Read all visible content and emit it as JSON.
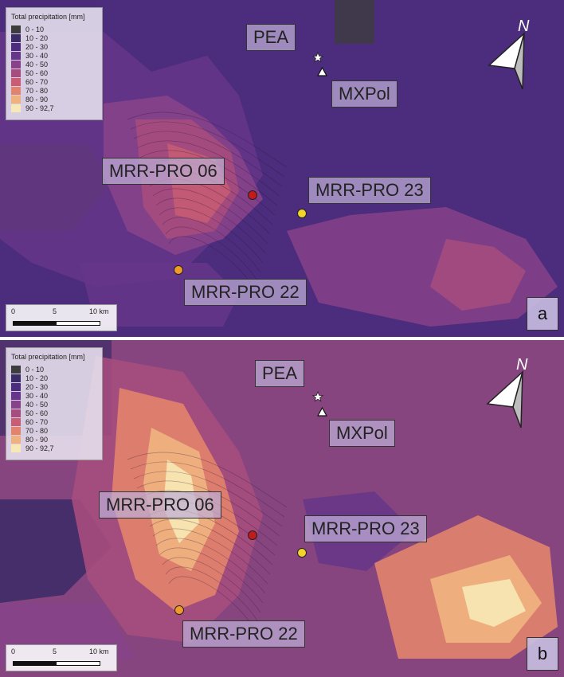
{
  "legend": {
    "title": "Total precipitation [mm]",
    "classes": [
      {
        "label": "0 - 10",
        "color": "#3d3d40"
      },
      {
        "label": "10 - 20",
        "color": "#3a2a66"
      },
      {
        "label": "20 - 30",
        "color": "#4c2c7c"
      },
      {
        "label": "30 - 40",
        "color": "#66368a"
      },
      {
        "label": "40 - 50",
        "color": "#874289"
      },
      {
        "label": "50 - 60",
        "color": "#a64c7e"
      },
      {
        "label": "60 - 70",
        "color": "#c85d73"
      },
      {
        "label": "70 - 80",
        "color": "#e2836d"
      },
      {
        "label": "80 - 90",
        "color": "#efb17e"
      },
      {
        "label": "90 - 92,7",
        "color": "#f7e9b6"
      }
    ]
  },
  "stations": {
    "pea": "PEA",
    "mxpol": "MXPol",
    "mrr06": "MRR-PRO 06",
    "mrr23": "MRR-PRO 23",
    "mrr22": "MRR-PRO 22"
  },
  "station_colors": {
    "mrr06": "#c21b1b",
    "mrr23": "#f2d42a",
    "mrr22": "#ef9a2a"
  },
  "north_symbol": "N",
  "scale": {
    "t0": "0",
    "t1": "5",
    "t2": "10 km"
  },
  "panels": [
    {
      "letter": "a",
      "background": "#4c2c7c"
    },
    {
      "letter": "b",
      "background": "#87457f"
    }
  ]
}
